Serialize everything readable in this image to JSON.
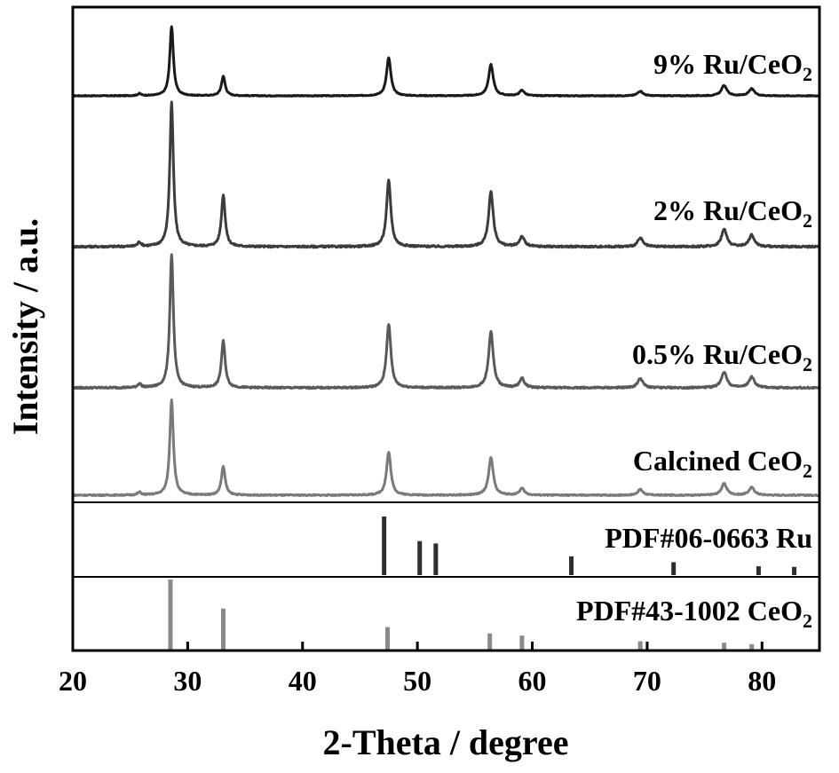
{
  "chart_data": {
    "type": "line",
    "xlabel": "2-Theta / degree",
    "ylabel": "Intensity / a.u.",
    "xlim": [
      20,
      85
    ],
    "xticks": [
      20,
      30,
      40,
      50,
      60,
      70,
      80
    ],
    "grid": false,
    "series": [
      {
        "name": "9% Ru/CeO",
        "name_subscript": "2",
        "color": "#1a1a1a",
        "peaks": [
          [
            25.8,
            0.03
          ],
          [
            28.6,
            1.0
          ],
          [
            33.1,
            0.28
          ],
          [
            47.5,
            0.55
          ],
          [
            56.4,
            0.45
          ],
          [
            59.1,
            0.08
          ],
          [
            69.4,
            0.07
          ],
          [
            76.7,
            0.15
          ],
          [
            79.1,
            0.1
          ]
        ]
      },
      {
        "name": "2% Ru/CeO",
        "name_subscript": "2",
        "color": "#3c3c3c",
        "peaks": [
          [
            25.8,
            0.03
          ],
          [
            28.6,
            1.0
          ],
          [
            33.1,
            0.36
          ],
          [
            47.5,
            0.46
          ],
          [
            56.4,
            0.38
          ],
          [
            59.1,
            0.07
          ],
          [
            69.4,
            0.06
          ],
          [
            76.7,
            0.12
          ],
          [
            79.1,
            0.08
          ]
        ]
      },
      {
        "name": "0.5% Ru/CeO",
        "name_subscript": "2",
        "color": "#5a5a5a",
        "peaks": [
          [
            25.8,
            0.03
          ],
          [
            28.6,
            1.0
          ],
          [
            33.1,
            0.35
          ],
          [
            47.5,
            0.48
          ],
          [
            56.4,
            0.42
          ],
          [
            59.1,
            0.07
          ],
          [
            69.4,
            0.07
          ],
          [
            76.7,
            0.12
          ],
          [
            79.1,
            0.08
          ]
        ]
      },
      {
        "name": "Calcined CeO",
        "name_subscript": "2",
        "color": "#7a7a7a",
        "peaks": [
          [
            25.8,
            0.03
          ],
          [
            28.6,
            1.0
          ],
          [
            33.1,
            0.3
          ],
          [
            47.5,
            0.45
          ],
          [
            56.4,
            0.39
          ],
          [
            59.1,
            0.07
          ],
          [
            69.4,
            0.06
          ],
          [
            76.7,
            0.12
          ],
          [
            79.1,
            0.08
          ]
        ]
      }
    ],
    "references": [
      {
        "name": "PDF#06-0663 Ru",
        "name_subscript": "",
        "color": "#2e2e2e",
        "lines": [
          [
            47.1,
            1.0
          ],
          [
            50.2,
            0.58
          ],
          [
            51.6,
            0.54
          ],
          [
            63.4,
            0.32
          ],
          [
            72.3,
            0.22
          ],
          [
            79.7,
            0.15
          ],
          [
            82.8,
            0.14
          ]
        ]
      },
      {
        "name": "PDF#43-1002 CeO",
        "name_subscript": "2",
        "color": "#8a8a8a",
        "lines": [
          [
            28.5,
            1.0
          ],
          [
            33.1,
            0.59
          ],
          [
            47.4,
            0.33
          ],
          [
            56.3,
            0.24
          ],
          [
            59.1,
            0.21
          ],
          [
            69.4,
            0.13
          ],
          [
            76.7,
            0.11
          ],
          [
            79.1,
            0.09
          ]
        ]
      }
    ]
  }
}
